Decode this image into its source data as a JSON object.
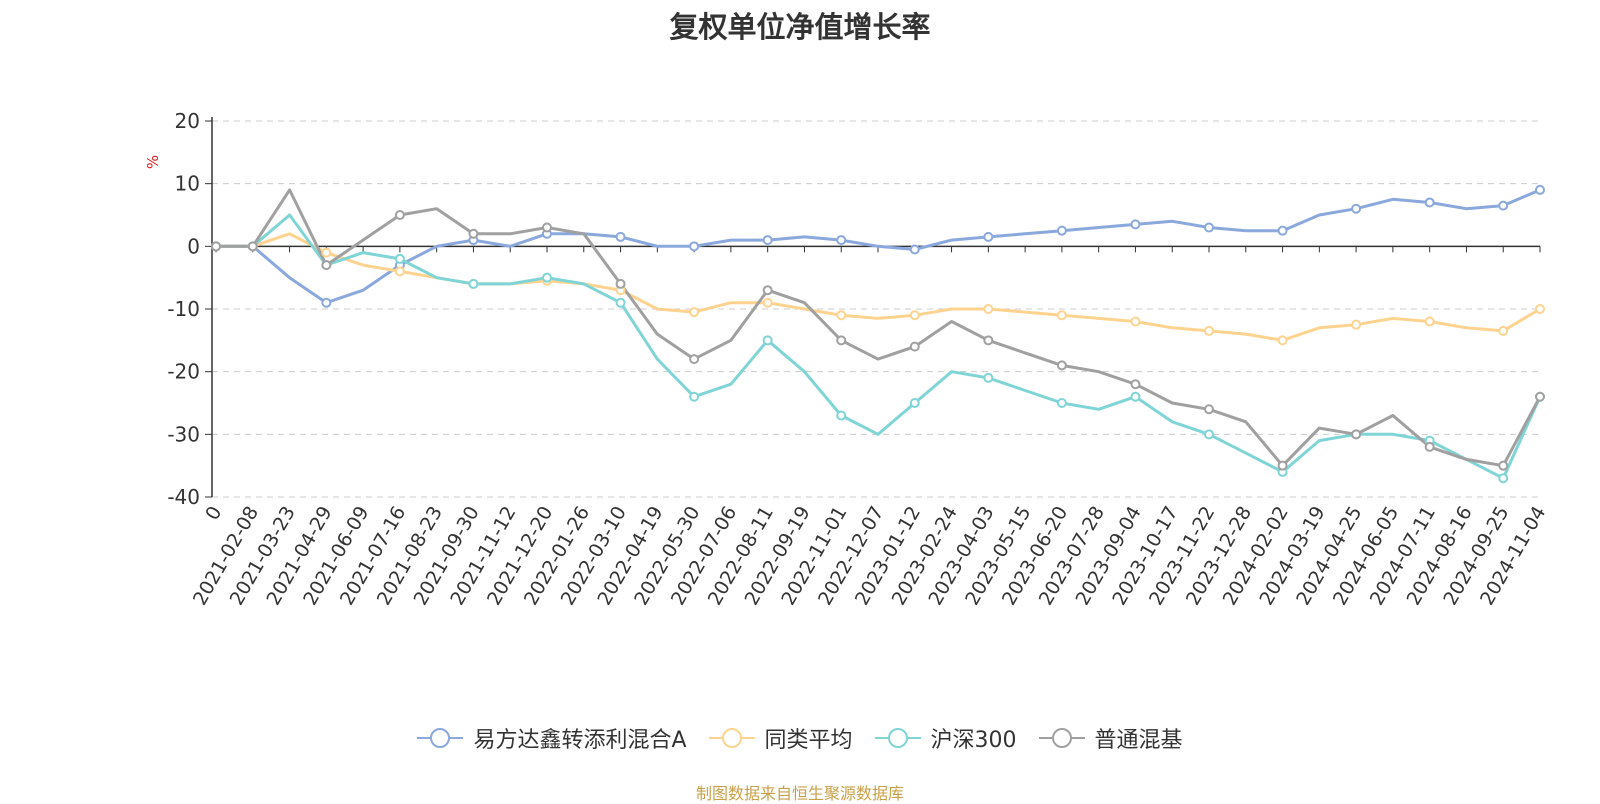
{
  "chart_data": {
    "type": "line",
    "title": "复权单位净值增长率",
    "ylabel": "%",
    "ylim": [
      -40,
      20
    ],
    "yticks": [
      20,
      10,
      0,
      -10,
      -20,
      -30,
      -40
    ],
    "grid": true,
    "legend_position": "bottom",
    "x_start_label": "0",
    "categories": [
      "2021-02-08",
      "2021-03-23",
      "2021-04-29",
      "2021-06-09",
      "2021-07-16",
      "2021-08-23",
      "2021-09-30",
      "2021-11-12",
      "2021-12-20",
      "2022-01-26",
      "2022-03-10",
      "2022-04-19",
      "2022-05-30",
      "2022-07-06",
      "2022-08-11",
      "2022-09-19",
      "2022-11-01",
      "2022-12-07",
      "2023-01-12",
      "2023-02-24",
      "2023-04-03",
      "2023-05-15",
      "2023-06-20",
      "2023-07-28",
      "2023-09-04",
      "2023-10-17",
      "2023-11-22",
      "2023-12-28",
      "2024-02-02",
      "2024-03-19",
      "2024-04-25",
      "2024-06-05",
      "2024-07-11",
      "2024-08-16",
      "2024-09-25",
      "2024-11-04"
    ],
    "series": [
      {
        "name": "易方达鑫转添利混合A",
        "color": "#8aa8dc",
        "values": [
          0,
          -5,
          -9,
          -7,
          -3,
          0,
          1,
          0,
          2,
          2,
          1.5,
          0,
          0,
          1,
          1,
          1.5,
          1,
          0,
          -0.5,
          1,
          1.5,
          2,
          2.5,
          3,
          3.5,
          4,
          3,
          2.5,
          2.5,
          5,
          6,
          7.5,
          7,
          6,
          6.5,
          9
        ]
      },
      {
        "name": "同类平均",
        "color": "#fdd38f",
        "values": [
          0,
          2,
          -1,
          -3,
          -4,
          -5,
          -6,
          -6,
          -5.5,
          -6,
          -7,
          -10,
          -10.5,
          -9,
          -9,
          -10,
          -11,
          -11.5,
          -11,
          -10,
          -10,
          -10.5,
          -11,
          -11.5,
          -12,
          -13,
          -13.5,
          -14,
          -15,
          -13,
          -12.5,
          -11.5,
          -12,
          -13,
          -13.5,
          -10
        ]
      },
      {
        "name": "沪深300",
        "color": "#7fd4d6",
        "values": [
          0,
          5,
          -3,
          -1,
          -2,
          -5,
          -6,
          -6,
          -5,
          -6,
          -9,
          -18,
          -24,
          -22,
          -15,
          -20,
          -27,
          -30,
          -25,
          -20,
          -21,
          -23,
          -25,
          -26,
          -24,
          -28,
          -30,
          -33,
          -36,
          -31,
          -30,
          -30,
          -31,
          -34,
          -37,
          -24
        ]
      },
      {
        "name": "普通混基",
        "color": "#a0a0a0",
        "values": [
          0,
          9,
          -3,
          1,
          5,
          6,
          2,
          2,
          3,
          2,
          -6,
          -14,
          -18,
          -15,
          -7,
          -9,
          -15,
          -18,
          -16,
          -12,
          -15,
          -17,
          -19,
          -20,
          -22,
          -25,
          -26,
          -28,
          -35,
          -29,
          -30,
          -27,
          -32,
          -34,
          -35,
          -24
        ]
      }
    ]
  },
  "legend": {
    "items": [
      {
        "label": "易方达鑫转添利混合A",
        "color": "#8aa8dc"
      },
      {
        "label": "同类平均",
        "color": "#fdd38f"
      },
      {
        "label": "沪深300",
        "color": "#7fd4d6"
      },
      {
        "label": "普通混基",
        "color": "#a0a0a0"
      }
    ]
  },
  "source_note": "制图数据来自恒生聚源数据库"
}
